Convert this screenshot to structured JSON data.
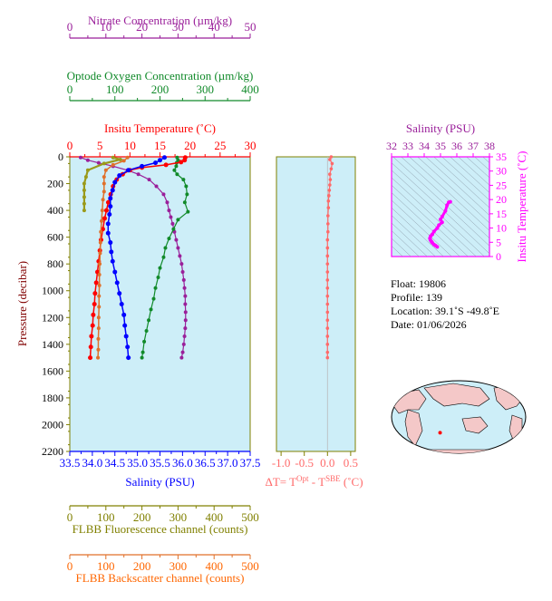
{
  "colors": {
    "nitrate": "#9a1f9a",
    "oxygen": "#118a2a",
    "temperature": "#ff0000",
    "salinity": "#0000ff",
    "fluorescence": "#9a9a1a",
    "backscatter": "#e0702a",
    "delta_t": "#ff6a6a",
    "ts_axis": "#ff00ff",
    "plot_bg": "#cdeef8",
    "frame": "#808000"
  },
  "chart_data": [
    {
      "type": "line",
      "panel": "main profile",
      "ylabel": "Pressure (decibar)",
      "ylim": [
        2200,
        0
      ],
      "yticks": [
        "0",
        "200",
        "400",
        "600",
        "800",
        "1000",
        "1200",
        "1400",
        "1600",
        "1800",
        "2000",
        "2200"
      ],
      "axes": {
        "nitrate": {
          "label": "Nitrate Concentration (µm/kg)",
          "range": [
            0,
            50
          ],
          "ticks": [
            "0",
            "10",
            "20",
            "30",
            "40",
            "50"
          ]
        },
        "oxygen": {
          "label": "Optode Oxygen Concentration (µm/kg)",
          "range": [
            0,
            400
          ],
          "ticks": [
            "0",
            "100",
            "200",
            "300",
            "400"
          ]
        },
        "temperature": {
          "label": "Insitu Temperature (˚C)",
          "range": [
            0,
            30
          ],
          "ticks": [
            "0",
            "5",
            "10",
            "15",
            "20",
            "25",
            "30"
          ]
        },
        "salinity": {
          "label": "Salinity (PSU)",
          "range": [
            33.5,
            37.5
          ],
          "ticks": [
            "33.5",
            "34.0",
            "34.5",
            "35.0",
            "35.5",
            "36.0",
            "36.5",
            "37.0",
            "37.5"
          ]
        },
        "fluorescence": {
          "label": "FLBB Fluorescence channel (counts)",
          "range": [
            0,
            500
          ],
          "ticks": [
            "0",
            "100",
            "200",
            "300",
            "400",
            "500"
          ]
        },
        "backscatter": {
          "label": "FLBB Backscatter channel (counts)",
          "range": [
            0,
            500
          ],
          "ticks": [
            "0",
            "100",
            "200",
            "300",
            "400",
            "500"
          ]
        }
      },
      "series": [
        {
          "key": "nitrate",
          "values": [
            [
              3,
              5
            ],
            [
              5,
              25
            ],
            [
              8,
              45
            ],
            [
              12,
              70
            ],
            [
              16,
              100
            ],
            [
              19,
              130
            ],
            [
              22,
              170
            ],
            [
              24,
              220
            ],
            [
              26,
              280
            ],
            [
              27,
              340
            ],
            [
              27.5,
              400
            ],
            [
              28,
              450
            ],
            [
              28.5,
              500
            ],
            [
              29,
              560
            ],
            [
              29.5,
              620
            ],
            [
              30,
              680
            ],
            [
              30.5,
              740
            ],
            [
              31,
              800
            ],
            [
              31.3,
              860
            ],
            [
              31.6,
              920
            ],
            [
              31.8,
              980
            ],
            [
              32,
              1040
            ],
            [
              32,
              1100
            ],
            [
              32.1,
              1160
            ],
            [
              32.1,
              1220
            ],
            [
              32,
              1280
            ],
            [
              31.8,
              1340
            ],
            [
              31.6,
              1400
            ],
            [
              31.3,
              1460
            ],
            [
              31,
              1500
            ]
          ]
        },
        {
          "key": "oxygen",
          "values": [
            [
              238,
              5
            ],
            [
              240,
              25
            ],
            [
              237,
              45
            ],
            [
              236,
              70
            ],
            [
              232,
              100
            ],
            [
              238,
              130
            ],
            [
              252,
              170
            ],
            [
              258,
              220
            ],
            [
              260,
              280
            ],
            [
              255,
              340
            ],
            [
              262,
              410
            ],
            [
              240,
              470
            ],
            [
              230,
              540
            ],
            [
              220,
              610
            ],
            [
              212,
              680
            ],
            [
              208,
              750
            ],
            [
              200,
              830
            ],
            [
              196,
              900
            ],
            [
              190,
              980
            ],
            [
              186,
              1060
            ],
            [
              180,
              1140
            ],
            [
              175,
              1220
            ],
            [
              170,
              1300
            ],
            [
              165,
              1380
            ],
            [
              162,
              1460
            ],
            [
              160,
              1500
            ]
          ]
        },
        {
          "key": "temperature",
          "values": [
            [
              19.2,
              5
            ],
            [
              19.1,
              25
            ],
            [
              18.5,
              40
            ],
            [
              16,
              60
            ],
            [
              12,
              80
            ],
            [
              10,
              100
            ],
            [
              8.8,
              130
            ],
            [
              7.8,
              170
            ],
            [
              7.2,
              220
            ],
            [
              6.8,
              280
            ],
            [
              6.4,
              340
            ],
            [
              6.1,
              400
            ],
            [
              5.8,
              460
            ],
            [
              5.5,
              540
            ],
            [
              5.2,
              620
            ],
            [
              5,
              700
            ],
            [
              4.8,
              780
            ],
            [
              4.6,
              860
            ],
            [
              4.4,
              940
            ],
            [
              4.2,
              1020
            ],
            [
              4.1,
              1100
            ],
            [
              3.9,
              1180
            ],
            [
              3.8,
              1260
            ],
            [
              3.6,
              1340
            ],
            [
              3.5,
              1420
            ],
            [
              3.4,
              1500
            ]
          ]
        },
        {
          "key": "salinity",
          "values": [
            [
              35.6,
              5
            ],
            [
              35.5,
              25
            ],
            [
              35.4,
              45
            ],
            [
              35.1,
              70
            ],
            [
              34.8,
              100
            ],
            [
              34.6,
              140
            ],
            [
              34.5,
              190
            ],
            [
              34.45,
              250
            ],
            [
              34.4,
              310
            ],
            [
              34.4,
              370
            ],
            [
              34.38,
              430
            ],
            [
              34.35,
              500
            ],
            [
              34.35,
              570
            ],
            [
              34.4,
              640
            ],
            [
              34.42,
              710
            ],
            [
              34.45,
              780
            ],
            [
              34.5,
              860
            ],
            [
              34.55,
              940
            ],
            [
              34.6,
              1020
            ],
            [
              34.65,
              1100
            ],
            [
              34.7,
              1180
            ],
            [
              34.72,
              1260
            ],
            [
              34.75,
              1340
            ],
            [
              34.78,
              1420
            ],
            [
              34.8,
              1500
            ]
          ]
        },
        {
          "key": "fluorescence",
          "values": [
            [
              120,
              5
            ],
            [
              140,
              20
            ],
            [
              95,
              50
            ],
            [
              50,
              100
            ],
            [
              45,
              150
            ],
            [
              40,
              200
            ],
            [
              40,
              250
            ],
            [
              40,
              300
            ],
            [
              40,
              350
            ],
            [
              40,
              400
            ]
          ]
        },
        {
          "key": "backscatter",
          "values": [
            [
              160,
              5
            ],
            [
              150,
              30
            ],
            [
              120,
              60
            ],
            [
              100,
              100
            ],
            [
              95,
              150
            ],
            [
              95,
              200
            ],
            [
              95,
              260
            ],
            [
              92,
              320
            ],
            [
              90,
              400
            ],
            [
              88,
              480
            ],
            [
              86,
              560
            ],
            [
              85,
              640
            ],
            [
              84,
              720
            ],
            [
              83,
              800
            ],
            [
              82,
              880
            ],
            [
              82,
              960
            ],
            [
              81,
              1040
            ],
            [
              81,
              1120
            ],
            [
              80,
              1200
            ],
            [
              80,
              1280
            ],
            [
              79,
              1360
            ],
            [
              79,
              1440
            ],
            [
              78,
              1500
            ]
          ]
        }
      ]
    },
    {
      "type": "scatter",
      "panel": "temperature difference",
      "xlabel": "ΔT= T^Opt - T^SBE (˚C)",
      "xlim": [
        -1.1,
        0.6
      ],
      "xticks": [
        "-1.0",
        "-0.5",
        "0.0",
        "0.5"
      ],
      "values": [
        [
          0.08,
          0
        ],
        [
          0.05,
          20
        ],
        [
          0.1,
          50
        ],
        [
          0.08,
          90
        ],
        [
          0.05,
          130
        ],
        [
          0.06,
          170
        ],
        [
          0.05,
          210
        ],
        [
          0.04,
          250
        ],
        [
          0.03,
          290
        ],
        [
          0.02,
          330
        ],
        [
          0.02,
          380
        ],
        [
          0.01,
          440
        ],
        [
          0.01,
          500
        ],
        [
          0.01,
          560
        ],
        [
          0.0,
          620
        ],
        [
          0.0,
          680
        ],
        [
          0.0,
          740
        ],
        [
          0.0,
          800
        ],
        [
          0.0,
          860
        ],
        [
          0.0,
          920
        ],
        [
          0.0,
          980
        ],
        [
          0.0,
          1040
        ],
        [
          0.0,
          1100
        ],
        [
          0.0,
          1160
        ],
        [
          0.0,
          1220
        ],
        [
          0.0,
          1280
        ],
        [
          0.0,
          1340
        ],
        [
          0.0,
          1400
        ],
        [
          0.0,
          1460
        ],
        [
          0.0,
          1500
        ]
      ]
    },
    {
      "type": "line",
      "panel": "T-S diagram",
      "xlabel": "Salinity (PSU)",
      "ylabel": "Insitu Temperature (˚C)",
      "xlim": [
        32,
        38
      ],
      "ylim": [
        0,
        35
      ],
      "xticks": [
        "32",
        "33",
        "34",
        "35",
        "36",
        "37",
        "38"
      ],
      "yticks": [
        "0",
        "5",
        "10",
        "15",
        "20",
        "25",
        "30",
        "35"
      ],
      "values": [
        [
          34.8,
          3.4
        ],
        [
          34.7,
          3.8
        ],
        [
          34.6,
          4.2
        ],
        [
          34.5,
          4.8
        ],
        [
          34.45,
          5.2
        ],
        [
          34.38,
          5.8
        ],
        [
          34.35,
          6.4
        ],
        [
          34.4,
          7.2
        ],
        [
          34.5,
          7.8
        ],
        [
          34.6,
          8.8
        ],
        [
          34.8,
          10
        ],
        [
          34.9,
          11
        ],
        [
          35.1,
          12
        ],
        [
          35.0,
          13
        ],
        [
          35.1,
          14
        ],
        [
          35.3,
          16
        ],
        [
          35.4,
          18
        ],
        [
          35.5,
          19
        ],
        [
          35.6,
          19.2
        ]
      ]
    }
  ],
  "info": {
    "float": "Float:  19806",
    "profile": "Profile:  139",
    "location": "Location:  39.1˚S  -49.8˚E",
    "date": "Date:  01/06/2026"
  },
  "map": {
    "marker_lon": -49.8,
    "marker_lat": -39.1
  }
}
